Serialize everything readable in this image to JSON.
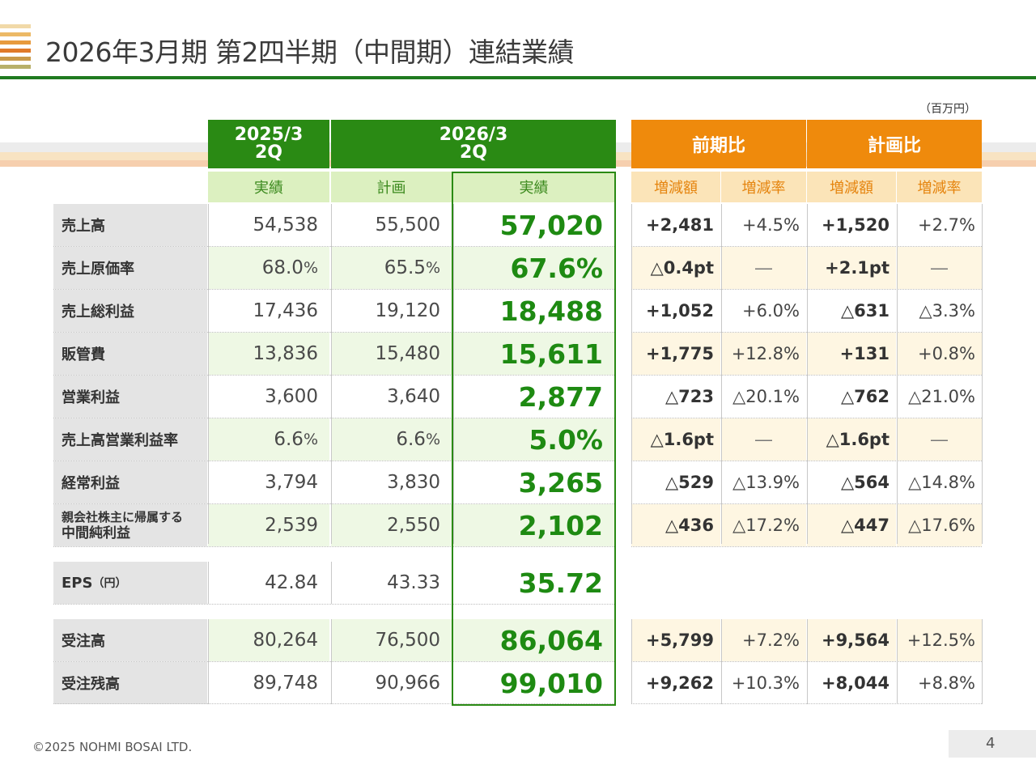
{
  "title": "2026年3月期 第2四半期（中間期）連結業績",
  "unit": "（百万円）",
  "colors": {
    "green": "#2a8a14",
    "orange": "#ef8a0c",
    "big_value": "#1e8a12"
  },
  "header": {
    "col_2025": "2025/3",
    "col_2025_q": "2Q",
    "col_2026": "2026/3",
    "col_2026_q": "2Q",
    "prev_compare": "前期比",
    "plan_compare": "計画比",
    "sub_actual_2025": "実績",
    "sub_plan": "計画",
    "sub_actual_2026": "実績",
    "sub_prev_amount": "増減額",
    "sub_prev_rate": "増減率",
    "sub_plan_amount": "増減額",
    "sub_plan_rate": "増減率"
  },
  "rows": [
    {
      "label": "売上高",
      "prev": "54,538",
      "plan": "55,500",
      "actual": "57,020",
      "prev_diff": "+2,481",
      "prev_rate": "+4.5%",
      "plan_diff": "+1,520",
      "plan_rate": "+2.7%"
    },
    {
      "label": "売上原価率",
      "prev": "68.0",
      "prev_unit": "%",
      "plan": "65.5",
      "plan_unit": "%",
      "actual": "67.6%",
      "prev_diff": "△0.4pt",
      "prev_rate": "―",
      "plan_diff": "+2.1pt",
      "plan_rate": "―"
    },
    {
      "label": "売上総利益",
      "prev": "17,436",
      "plan": "19,120",
      "actual": "18,488",
      "prev_diff": "+1,052",
      "prev_rate": "+6.0%",
      "plan_diff": "△631",
      "plan_rate": "△3.3%"
    },
    {
      "label": "販管費",
      "prev": "13,836",
      "plan": "15,480",
      "actual": "15,611",
      "prev_diff": "+1,775",
      "prev_rate": "+12.8%",
      "plan_diff": "+131",
      "plan_rate": "+0.8%"
    },
    {
      "label": "営業利益",
      "prev": "3,600",
      "plan": "3,640",
      "actual": "2,877",
      "prev_diff": "△723",
      "prev_rate": "△20.1%",
      "plan_diff": "△762",
      "plan_rate": "△21.0%"
    },
    {
      "label": "売上高営業利益率",
      "prev": "6.6",
      "prev_unit": "%",
      "plan": "6.6",
      "plan_unit": "%",
      "actual": "5.0%",
      "prev_diff": "△1.6pt",
      "prev_rate": "―",
      "plan_diff": "△1.6pt",
      "plan_rate": "―"
    },
    {
      "label": "経常利益",
      "prev": "3,794",
      "plan": "3,830",
      "actual": "3,265",
      "prev_diff": "△529",
      "prev_rate": "△13.9%",
      "plan_diff": "△564",
      "plan_rate": "△14.8%"
    },
    {
      "label": "親会社株主に帰属する",
      "label2": "中間純利益",
      "prev": "2,539",
      "plan": "2,550",
      "actual": "2,102",
      "prev_diff": "△436",
      "prev_rate": "△17.2%",
      "plan_diff": "△447",
      "plan_rate": "△17.6%"
    }
  ],
  "eps": {
    "label": "EPS",
    "label_unit": "（円）",
    "prev": "42.84",
    "plan": "43.33",
    "actual": "35.72"
  },
  "orders": [
    {
      "label": "受注高",
      "prev": "80,264",
      "plan": "76,500",
      "actual": "86,064",
      "prev_diff": "+5,799",
      "prev_rate": "+7.2%",
      "plan_diff": "+9,564",
      "plan_rate": "+12.5%"
    },
    {
      "label": "受注残高",
      "prev": "89,748",
      "plan": "90,966",
      "actual": "99,010",
      "prev_diff": "+9,262",
      "prev_rate": "+10.3%",
      "plan_diff": "+8,044",
      "plan_rate": "+8.8%"
    }
  ],
  "footer": {
    "copyright": "©2025 NOHMI BOSAI LTD.",
    "page": "4"
  }
}
